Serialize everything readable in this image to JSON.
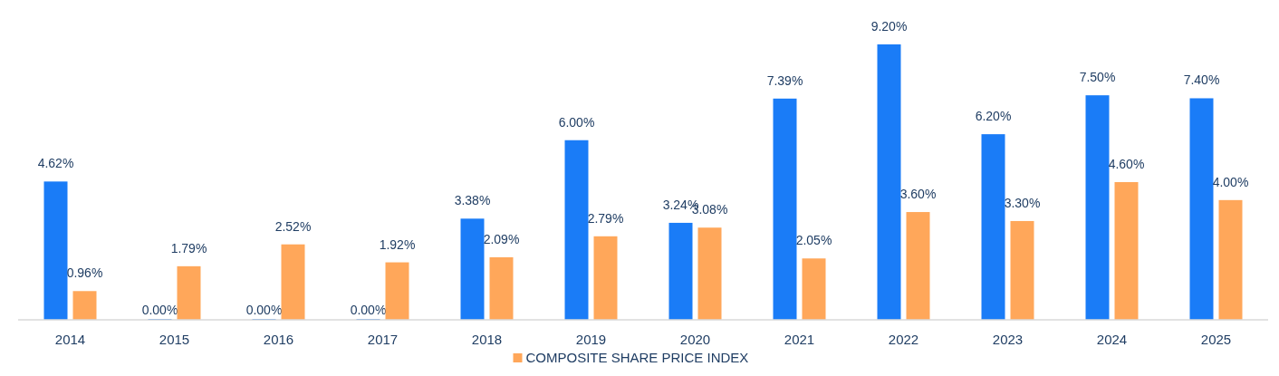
{
  "chart_data": {
    "type": "bar",
    "categories": [
      "2014",
      "2015",
      "2016",
      "2017",
      "2018",
      "2019",
      "2020",
      "2021",
      "2022",
      "2023",
      "2024",
      "2025"
    ],
    "series": [
      {
        "color": "#1a7cf7",
        "values": [
          4.62,
          0,
          0,
          0,
          3.38,
          6.0,
          3.24,
          7.39,
          9.2,
          6.2,
          7.5,
          7.4
        ],
        "value_labels": [
          "4.62%",
          "0.00%",
          "0.00%",
          "0.00%",
          "3.38%",
          "6.00%",
          "3.24%",
          "7.39%",
          "9.20%",
          "6.20%",
          "7.50%",
          "7.40%"
        ]
      },
      {
        "name": "COMPOSITE SHARE PRICE INDEX",
        "color": "#ffa75a",
        "values": [
          0.96,
          1.79,
          2.52,
          1.92,
          2.09,
          2.79,
          3.08,
          2.05,
          3.6,
          3.3,
          4.6,
          4.0
        ],
        "value_labels": [
          "0.96%",
          "1.79%",
          "2.52%",
          "1.92%",
          "2.09%",
          "2.79%",
          "3.08%",
          "2.05%",
          "3.60%",
          "3.30%",
          "4.60%",
          "4.00%"
        ]
      }
    ],
    "legend": "bottom"
  }
}
